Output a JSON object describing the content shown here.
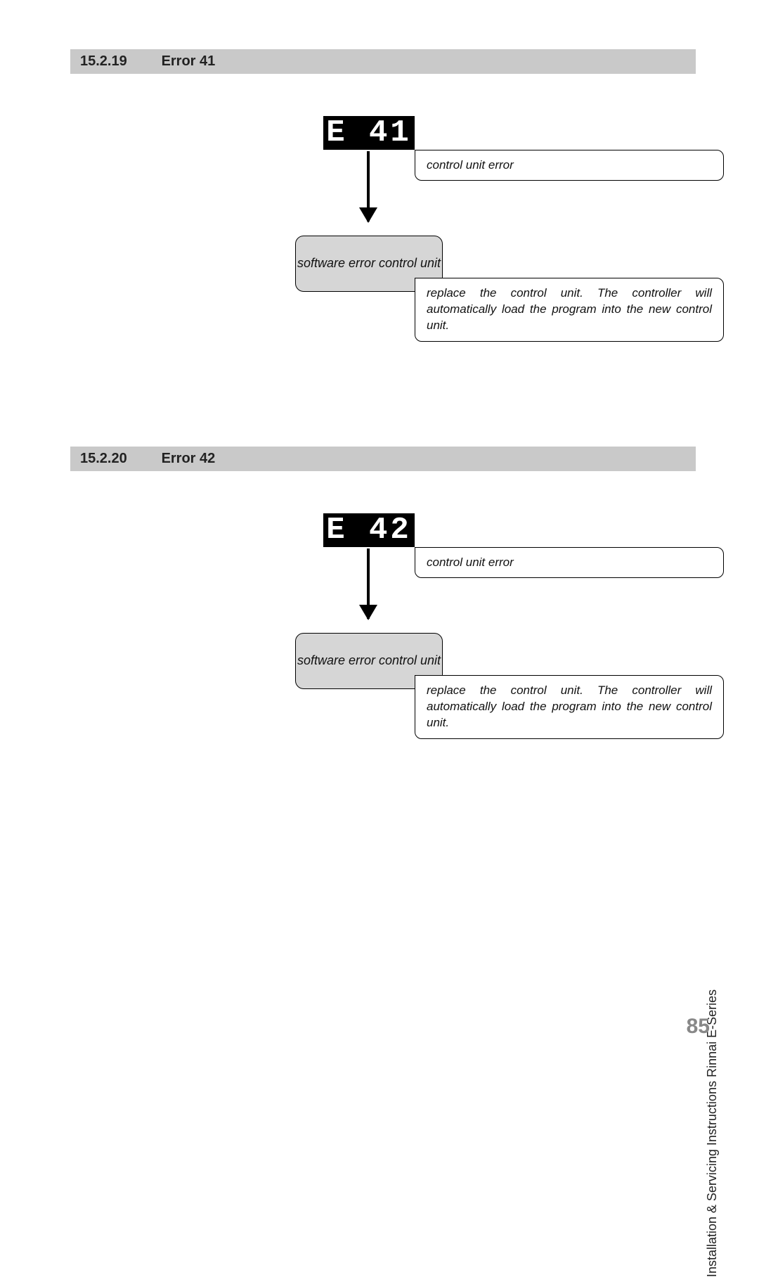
{
  "colors": {
    "heading_bg": "#c9c9c9",
    "step_bg": "#d6d6d6",
    "display_bg": "#000000",
    "display_fg": "#ffffff",
    "border": "#000000",
    "pagenum": "#888888",
    "text": "#111111"
  },
  "section1": {
    "heading_number": "15.2.19",
    "heading_title": "Error 41",
    "display": "E  41",
    "callout_top": "control unit error",
    "step_label": "software error control unit",
    "callout_bottom": "replace the control unit. The controller will automatically load the program into the new control unit."
  },
  "section2": {
    "heading_number": "15.2.20",
    "heading_title": "Error 42",
    "display": "E  42",
    "callout_top": "control unit error",
    "step_label": "software error control unit",
    "callout_bottom": "replace the control unit. The controller will automatically load the program into the new control unit."
  },
  "footer": {
    "side_text": "Installation & Servicing Instructions Rinnai E-Series",
    "page_number": "85"
  }
}
